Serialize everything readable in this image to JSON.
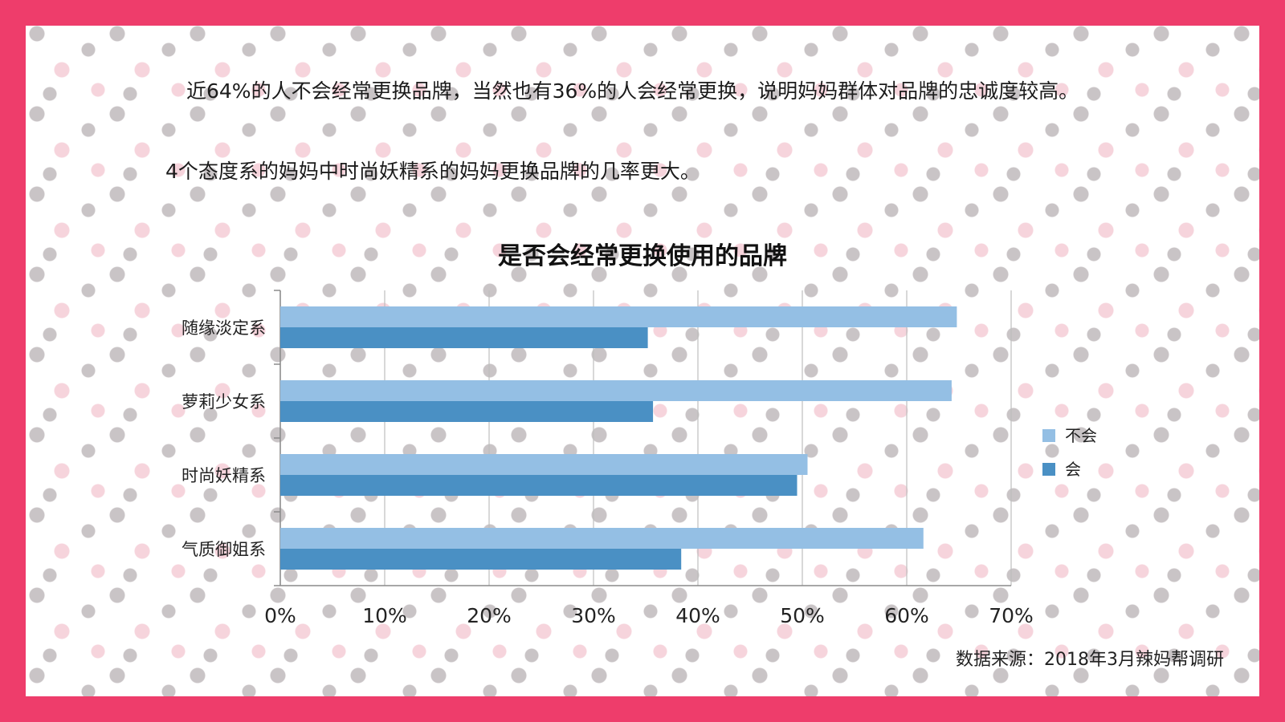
{
  "text": {
    "paragraph1": "近64%的人不会经常更换品牌，当然也有36%的人会经常更换，说明妈妈群体对品牌的忠诚度较高。",
    "paragraph2": "4个态度系的妈妈中时尚妖精系的妈妈更换品牌的几率更大。",
    "source": "数据来源：2018年3月辣妈帮调研"
  },
  "chart_data": {
    "type": "bar",
    "orientation": "horizontal",
    "title": "是否会经常更换使用的品牌",
    "categories": [
      "随缘淡定系",
      "萝莉少女系",
      "时尚妖精系",
      "气质御姐系"
    ],
    "series": [
      {
        "name": "不会",
        "values": [
          64.8,
          64.3,
          50.5,
          61.6
        ],
        "color": "#94bfe4"
      },
      {
        "name": "会",
        "values": [
          35.2,
          35.7,
          49.5,
          38.4
        ],
        "color": "#4a90c4"
      }
    ],
    "xlim": [
      0,
      70
    ],
    "xticks": [
      "0%",
      "10%",
      "20%",
      "30%",
      "40%",
      "50%",
      "60%",
      "70%"
    ],
    "grid": true,
    "legend_position": "right"
  },
  "colors": {
    "frame": "#ee3d6b",
    "card": "#ffffff",
    "grid": "#bdbdbd"
  }
}
